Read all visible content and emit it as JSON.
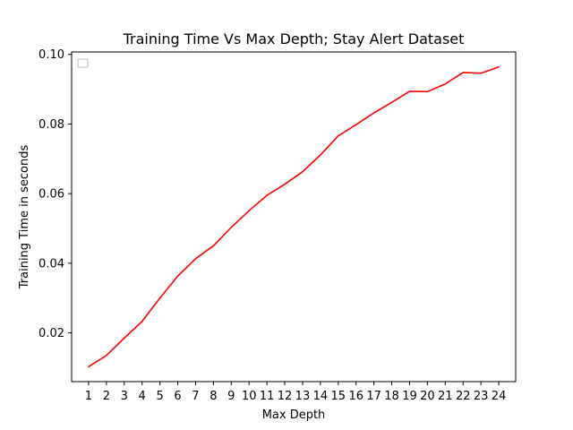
{
  "chart_data": {
    "type": "line",
    "title": "Training Time Vs Max Depth; Stay Alert Dataset",
    "xlabel": "Max Depth",
    "ylabel": "Training Time in seconds",
    "x": [
      1,
      2,
      3,
      4,
      5,
      6,
      7,
      8,
      9,
      10,
      11,
      12,
      13,
      14,
      15,
      16,
      17,
      18,
      19,
      20,
      21,
      22,
      23,
      24
    ],
    "series": [
      {
        "color": "#ff0000",
        "values": [
          0.0103,
          0.0135,
          0.0185,
          0.0233,
          0.03,
          0.0363,
          0.0413,
          0.045,
          0.0503,
          0.0551,
          0.0595,
          0.0627,
          0.0663,
          0.0711,
          0.0766,
          0.0798,
          0.0832,
          0.0862,
          0.0894,
          0.0893,
          0.0915,
          0.0948,
          0.0946,
          0.0964
        ]
      }
    ],
    "xticks": [
      1,
      2,
      3,
      4,
      5,
      6,
      7,
      8,
      9,
      10,
      11,
      12,
      13,
      14,
      15,
      16,
      17,
      18,
      19,
      20,
      21,
      22,
      23,
      24
    ],
    "yticks": [
      0.02,
      0.04,
      0.06,
      0.08,
      0.1
    ],
    "ytick_labels": [
      "0.02",
      "0.04",
      "0.06",
      "0.08",
      "0.10"
    ],
    "xlim": [
      0.05,
      24.95
    ],
    "ylim": [
      0.006,
      0.1007
    ],
    "grid": false,
    "legend": "upper-left (empty)"
  }
}
